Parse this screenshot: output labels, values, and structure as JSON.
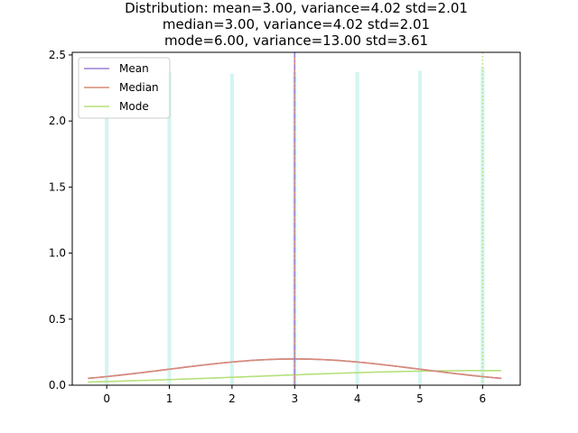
{
  "chart_data": {
    "type": "bar",
    "title_lines": [
      "Distribution: mean=3.00, variance=4.02 std=2.01",
      "median=3.00, variance=4.02 std=2.01",
      "mode=6.00, variance=13.00 std=3.61"
    ],
    "xlabel": "",
    "ylabel": "",
    "xlim": [
      -0.55,
      6.6
    ],
    "ylim": [
      0,
      2.52
    ],
    "x_ticks": [
      0,
      1,
      2,
      3,
      4,
      5,
      6
    ],
    "y_ticks": [
      0.0,
      0.5,
      1.0,
      1.5,
      2.0,
      2.5
    ],
    "y_tick_labels": [
      "0.0",
      "0.5",
      "1.0",
      "1.5",
      "2.0",
      "2.5"
    ],
    "bars": {
      "x": [
        0,
        1,
        2,
        3,
        4,
        5,
        6
      ],
      "values": [
        2.07,
        2.37,
        2.36,
        2.37,
        2.37,
        2.38,
        2.41
      ],
      "width": 0.06,
      "color": "#d4f5f1"
    },
    "series": [
      {
        "name": "Mean",
        "color": "#9b7fd4",
        "mu": 3.0,
        "sigma": 2.01,
        "vline": 3.0,
        "vline_style": "dashdot"
      },
      {
        "name": "Median",
        "color": "#d98a75",
        "mu": 3.0,
        "sigma": 2.01,
        "vline": 3.0,
        "vline_style": "solid"
      },
      {
        "name": "Mode",
        "color": "#b5e07a",
        "mu": 6.0,
        "sigma": 3.61,
        "vline": 6.0,
        "vline_style": "dotted"
      }
    ],
    "curve_range": [
      -0.3,
      6.3
    ],
    "grid": false,
    "legend_position": "upper-left"
  }
}
